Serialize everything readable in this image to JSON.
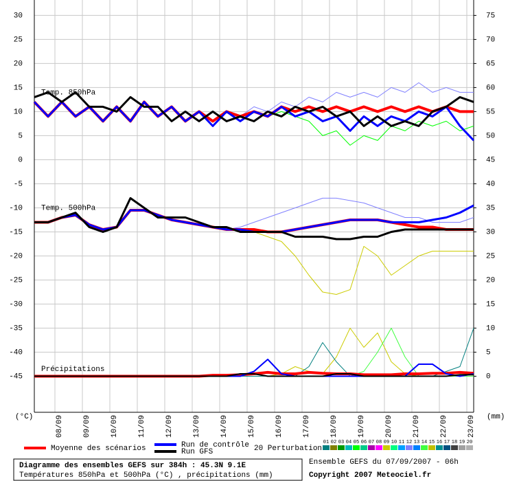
{
  "chart_data": {
    "type": "line",
    "title": "Diagramme des ensembles GEFS sur 384h : 45.3N 9.1E",
    "subtitle": "Températures 850hPa et 500hPa (°C) , précipitations (mm)",
    "run_info": "Ensemble GEFS du 07/09/2007 - 06h",
    "copyright": "Copyright 2007 Meteociel.fr",
    "y_label": "(°C)",
    "y2_label": "(mm)",
    "annotations": [
      {
        "text": "Temp. 850hPa",
        "x": 0,
        "y": 14
      },
      {
        "text": "Temp. 500hPa",
        "x": 0,
        "y": -10
      },
      {
        "text": "Précipitations",
        "x": 0,
        "y": -43.5
      }
    ],
    "grid": true,
    "xlim": [
      0,
      384
    ],
    "xticks": [
      {
        "value": 18,
        "label": "08/09"
      },
      {
        "value": 42,
        "label": "09/09"
      },
      {
        "value": 66,
        "label": "10/09"
      },
      {
        "value": 90,
        "label": "11/09"
      },
      {
        "value": 114,
        "label": "12/09"
      },
      {
        "value": 138,
        "label": "13/09"
      },
      {
        "value": 162,
        "label": "14/09"
      },
      {
        "value": 186,
        "label": "15/09"
      },
      {
        "value": 210,
        "label": "16/09"
      },
      {
        "value": 234,
        "label": "17/09"
      },
      {
        "value": 258,
        "label": "18/09"
      },
      {
        "value": 282,
        "label": "19/09"
      },
      {
        "value": 306,
        "label": "20/09"
      },
      {
        "value": 330,
        "label": "21/09"
      },
      {
        "value": 354,
        "label": "22/09"
      },
      {
        "value": 378,
        "label": "23/09"
      }
    ],
    "ylim": [
      -52.5,
      33.2
    ],
    "yticks": [
      -45,
      -40,
      -35,
      -30,
      -25,
      -20,
      -15,
      -10,
      -5,
      0,
      5,
      10,
      15,
      20,
      25,
      30
    ],
    "y2lim": [
      -7.5,
      78.2
    ],
    "y2ticks": [
      0,
      5,
      10,
      15,
      20,
      25,
      30,
      35,
      40,
      45,
      50,
      55,
      60,
      65,
      70,
      75
    ],
    "x": [
      0,
      12,
      24,
      36,
      48,
      60,
      72,
      84,
      96,
      108,
      120,
      132,
      144,
      156,
      168,
      180,
      192,
      204,
      216,
      228,
      240,
      252,
      264,
      276,
      288,
      300,
      312,
      324,
      336,
      348,
      360,
      372,
      384
    ],
    "perturbations": {
      "label": "20 Perturbations",
      "members": [
        {
          "name": "01",
          "color": "#007f7f"
        },
        {
          "name": "02",
          "color": "#7f7f00"
        },
        {
          "name": "03",
          "color": "#009900"
        },
        {
          "name": "04",
          "color": "#00bbbb"
        },
        {
          "name": "05",
          "color": "#00ff00"
        },
        {
          "name": "06",
          "color": "#00cc88"
        },
        {
          "name": "07",
          "color": "#aa00aa"
        },
        {
          "name": "08",
          "color": "#ff00ff"
        },
        {
          "name": "09",
          "color": "#cccc00"
        },
        {
          "name": "10",
          "color": "#00ff80"
        },
        {
          "name": "11",
          "color": "#00a0ff"
        },
        {
          "name": "12",
          "color": "#8080ff"
        },
        {
          "name": "13",
          "color": "#0080ff"
        },
        {
          "name": "14",
          "color": "#40ff40"
        },
        {
          "name": "15",
          "color": "#c0c000"
        },
        {
          "name": "16",
          "color": "#009090"
        },
        {
          "name": "17",
          "color": "#005080"
        },
        {
          "name": "18",
          "color": "#404040"
        },
        {
          "name": "19",
          "color": "#a0a0a0"
        },
        {
          "name": "20",
          "color": "#b0b0b0"
        }
      ]
    },
    "series": [
      {
        "name": "05",
        "color": "#00ff00",
        "width": 1,
        "values": [
          12,
          9,
          12,
          9,
          11,
          8,
          11,
          8,
          12,
          9,
          11,
          8,
          10,
          8,
          10,
          9,
          10,
          9,
          10,
          9,
          8,
          5,
          6,
          3,
          5,
          4,
          7,
          6,
          8,
          7,
          8,
          6,
          7
        ]
      },
      {
        "name": "12",
        "color": "#8080ff",
        "width": 1,
        "values": [
          12,
          9,
          12,
          9,
          11,
          8,
          11,
          8,
          12,
          9,
          11,
          8,
          10,
          8,
          10,
          9,
          11,
          10,
          12,
          11,
          13,
          12,
          14,
          13,
          14,
          13,
          15,
          14,
          16,
          14,
          15,
          14,
          14
        ]
      },
      {
        "name": "09",
        "color": "#cccc00",
        "width": 1,
        "values": [
          -13,
          -13,
          -12,
          -11.5,
          -13.5,
          -14.5,
          -14,
          -10.5,
          -10.5,
          -11.5,
          -12.5,
          -13,
          -13.5,
          -14,
          -14.5,
          -14.5,
          -15,
          -16,
          -17,
          -20,
          -24,
          -27.5,
          -28,
          -27,
          -18,
          -20,
          -24,
          -22,
          -20,
          -19,
          -19,
          -19,
          -19
        ]
      },
      {
        "name": "12",
        "color": "#8080ff",
        "width": 1,
        "values": [
          -13,
          -13,
          -12,
          -11.5,
          -13.5,
          -14.5,
          -14,
          -10.5,
          -10.5,
          -11.5,
          -12.5,
          -13,
          -13.5,
          -14,
          -14.5,
          -14,
          -13,
          -12,
          -11,
          -10,
          -9,
          -8,
          -8,
          -8.5,
          -9,
          -10,
          -11,
          -12,
          -12,
          -13,
          -13,
          -13,
          -12
        ]
      },
      {
        "name": "09",
        "color": "#cccc00",
        "width": 1,
        "axis": "y2",
        "values": [
          0,
          0,
          0,
          0,
          0,
          0,
          0,
          0,
          0,
          0,
          0,
          0,
          0,
          0,
          0,
          0,
          0,
          0,
          0.5,
          2,
          1,
          0.5,
          4,
          10,
          6,
          9,
          3,
          0.5,
          0,
          0,
          0,
          0,
          0
        ]
      },
      {
        "name": "14",
        "color": "#40ff40",
        "width": 1,
        "axis": "y2",
        "values": [
          0,
          0,
          0,
          0,
          0,
          0,
          0,
          0,
          0,
          0,
          0,
          0,
          0,
          0,
          0,
          0,
          0,
          0,
          0,
          0,
          0,
          0,
          0,
          0,
          1,
          5,
          10,
          4,
          0,
          0,
          0,
          0,
          0
        ]
      },
      {
        "name": "01",
        "color": "#007f7f",
        "width": 1,
        "axis": "y2",
        "values": [
          0,
          0,
          0,
          0,
          0,
          0,
          0,
          0,
          0,
          0,
          0,
          0,
          0,
          0,
          0,
          0,
          0,
          0,
          0,
          0,
          2,
          7,
          3,
          0,
          0,
          0,
          0,
          0,
          0,
          0,
          1,
          2,
          10
        ]
      },
      {
        "name": "Moyenne des scénarios",
        "color": "#ff0000",
        "width": 4,
        "values": [
          12,
          9,
          12,
          9,
          11,
          8,
          11,
          8,
          12,
          9,
          11,
          8,
          10,
          8,
          10,
          9,
          10,
          9,
          11,
          10,
          11,
          10,
          11,
          10,
          11,
          10,
          11,
          10,
          11,
          10,
          11,
          10,
          10
        ]
      },
      {
        "name": "Run de contrôle",
        "color": "#0000ff",
        "width": 3,
        "values": [
          12,
          9,
          12,
          9,
          11,
          8,
          11,
          8,
          12,
          9,
          11,
          8,
          10,
          7,
          10,
          8,
          10,
          9,
          11,
          9,
          10,
          8,
          9,
          6,
          9,
          7,
          9,
          8,
          10,
          9,
          11,
          7,
          4
        ]
      },
      {
        "name": "Run GFS",
        "color": "#000000",
        "width": 3,
        "values": [
          13,
          14,
          12,
          14,
          11,
          11,
          10,
          13,
          11,
          11,
          8,
          10,
          8,
          10,
          8,
          9,
          8,
          10,
          9,
          11,
          10,
          11,
          9,
          10,
          7,
          9,
          7,
          8,
          7,
          10,
          11,
          13,
          12
        ]
      },
      {
        "name": "Moyenne des scénarios",
        "color": "#ff0000",
        "width": 4,
        "values": [
          -13,
          -13,
          -12,
          -11.5,
          -13.5,
          -14.5,
          -14,
          -10.5,
          -10.5,
          -11.5,
          -12.5,
          -13,
          -13.5,
          -14,
          -14.5,
          -14.5,
          -14.5,
          -15,
          -15,
          -14.5,
          -14,
          -13.5,
          -13,
          -12.5,
          -12.5,
          -12.5,
          -13,
          -13.5,
          -14,
          -14,
          -14.5,
          -14.5,
          -14.5
        ]
      },
      {
        "name": "Run de contrôle",
        "color": "#0000ff",
        "width": 3,
        "values": [
          -13,
          -13,
          -12,
          -11.5,
          -13.5,
          -14.5,
          -14,
          -10.5,
          -10.5,
          -11.5,
          -12.5,
          -13,
          -13.5,
          -14,
          -14.5,
          -14.5,
          -15,
          -15,
          -15,
          -14.5,
          -14,
          -13.5,
          -13,
          -12.5,
          -12.5,
          -12.5,
          -13,
          -13,
          -13,
          -12.5,
          -12,
          -11,
          -9.5
        ]
      },
      {
        "name": "Run GFS",
        "color": "#000000",
        "width": 3,
        "values": [
          -13,
          -13,
          -12,
          -11,
          -14,
          -15,
          -14,
          -8,
          -10,
          -12,
          -12,
          -12,
          -13,
          -14,
          -14,
          -15,
          -15,
          -15,
          -15,
          -16,
          -16,
          -16,
          -16.5,
          -16.5,
          -16,
          -16,
          -15,
          -14.5,
          -14.5,
          -14.5,
          -14.5,
          -14.5,
          -14.5
        ]
      },
      {
        "name": "Moyenne des scénarios",
        "color": "#ff0000",
        "width": 4,
        "axis": "y2",
        "values": [
          0,
          0,
          0,
          0,
          0,
          0,
          0,
          0,
          0,
          0,
          0,
          0,
          0,
          0.2,
          0.2,
          0.3,
          0.5,
          0.8,
          0.5,
          0.5,
          0.8,
          0.6,
          0.5,
          0.5,
          0.3,
          0.3,
          0.3,
          0.5,
          0.5,
          0.6,
          0.6,
          0.8,
          0.6
        ]
      },
      {
        "name": "Run de contrôle",
        "color": "#0000ff",
        "width": 2,
        "axis": "y2",
        "values": [
          0,
          0,
          0,
          0,
          0,
          0,
          0,
          0,
          0,
          0,
          0,
          0,
          0,
          0,
          0,
          0,
          1,
          3.5,
          0.5,
          0,
          0,
          0,
          0,
          0,
          0,
          0,
          0,
          0,
          2.5,
          2.5,
          0.5,
          0,
          0.5
        ]
      },
      {
        "name": "Run GFS",
        "color": "#000000",
        "width": 2,
        "axis": "y2",
        "values": [
          0,
          0,
          0,
          0,
          0,
          0,
          0,
          0,
          0,
          0,
          0,
          0,
          0,
          0,
          0,
          0.5,
          0.5,
          0,
          0,
          0,
          0,
          0,
          0.5,
          0.5,
          0,
          0,
          0,
          0,
          0,
          0,
          0,
          0.3,
          0.3
        ]
      }
    ]
  }
}
